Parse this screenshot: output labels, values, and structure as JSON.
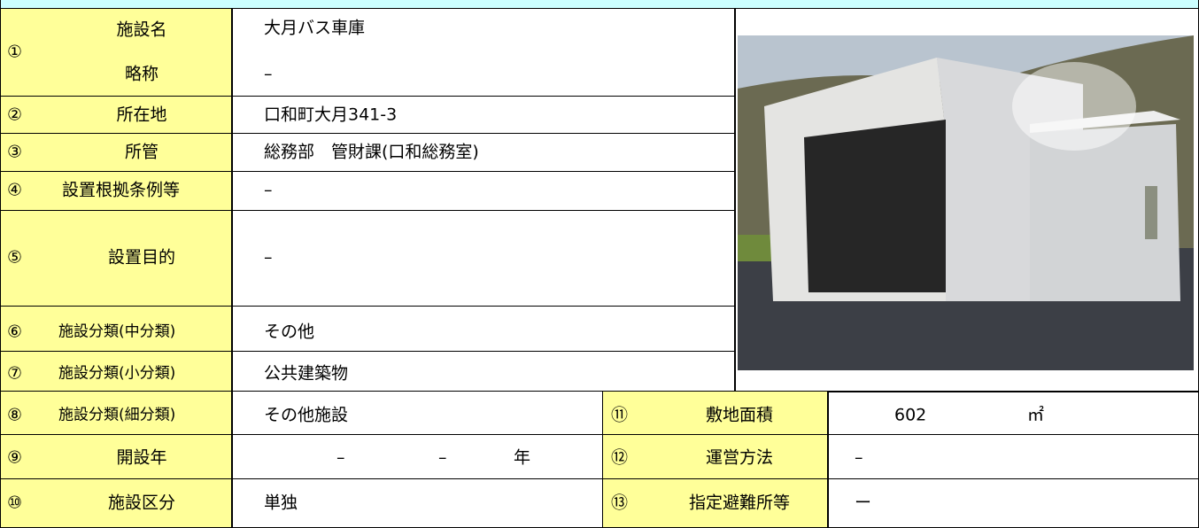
{
  "rows": [
    {
      "number": "①",
      "label": "施設名",
      "value": "大月バス車庫",
      "alt_label": "略称",
      "alt_value": "–"
    },
    {
      "number": "②",
      "label": "所在地",
      "value": "口和町大月341-3"
    },
    {
      "number": "③",
      "label": "所管",
      "value": "総務部　管財課(口和総務室)"
    },
    {
      "number": "④",
      "label": "設置根拠条例等",
      "value": "–"
    },
    {
      "number": "⑤",
      "label": "設置目的",
      "value": "–"
    },
    {
      "number": "⑥",
      "label": "施設分類(中分類)",
      "value": "その他"
    },
    {
      "number": "⑦",
      "label": "施設分類(小分類)",
      "value": "公共建築物"
    },
    {
      "number": "⑧",
      "label": "施設分類(細分類)",
      "value": "その他施設"
    },
    {
      "number": "⑨",
      "label": "開設年",
      "value_parts": [
        "–",
        "–",
        "年"
      ]
    },
    {
      "number": "⑩",
      "label": "施設区分",
      "value": "単独"
    }
  ],
  "side_rows": [
    {
      "number": "⑪",
      "label": "敷地面積",
      "value": "602",
      "unit": "㎡"
    },
    {
      "number": "⑫",
      "label": "運営方法",
      "value": "–"
    },
    {
      "number": "⑬",
      "label": "指定避難所等",
      "value": "ー"
    }
  ]
}
